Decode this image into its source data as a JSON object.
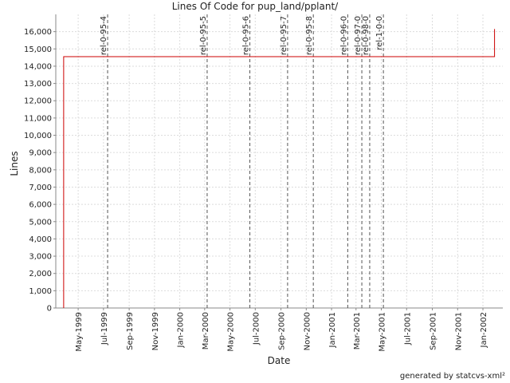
{
  "chart_data": {
    "type": "line",
    "title": "Lines Of Code for pup_land/pplant/",
    "x_label": "Date",
    "y_label": "Lines",
    "x": [
      "1999-03-27",
      "1999-03-27",
      "2002-01-29",
      "2002-01-29"
    ],
    "series": [
      {
        "color": "#cc0000",
        "values": [
          0,
          14550,
          14550,
          16150
        ]
      }
    ],
    "markers": [
      {
        "x": "1999-07-11",
        "label": "rel-0-95-4"
      },
      {
        "x": "2000-03-07",
        "label": "rel-0-95-5"
      },
      {
        "x": "2000-06-18",
        "label": "rel-0-95-6"
      },
      {
        "x": "2000-09-17",
        "label": "rel-0-95-7"
      },
      {
        "x": "2000-11-18",
        "label": "rel-0-95-8"
      },
      {
        "x": "2001-02-09",
        "label": "rel-0-96-0"
      },
      {
        "x": "2001-03-15",
        "label": "rel-0-97-0"
      },
      {
        "x": "2001-04-03",
        "label": "rel-0-98-0"
      },
      {
        "x": "2001-05-06",
        "label": "rel-1-0-0"
      }
    ],
    "marker_color": "#555555",
    "xlim": [
      "1999-03-08",
      "2002-02-18"
    ],
    "xticks": [
      {
        "value": "1999-05-01",
        "label": "May-1999"
      },
      {
        "value": "1999-07-01",
        "label": "Jul-1999"
      },
      {
        "value": "1999-09-01",
        "label": "Sep-1999"
      },
      {
        "value": "1999-11-01",
        "label": "Nov-1999"
      },
      {
        "value": "2000-01-01",
        "label": "Jan-2000"
      },
      {
        "value": "2000-03-01",
        "label": "Mar-2000"
      },
      {
        "value": "2000-05-01",
        "label": "May-2000"
      },
      {
        "value": "2000-07-01",
        "label": "Jul-2000"
      },
      {
        "value": "2000-09-01",
        "label": "Sep-2000"
      },
      {
        "value": "2000-11-01",
        "label": "Nov-2000"
      },
      {
        "value": "2001-01-01",
        "label": "Jan-2001"
      },
      {
        "value": "2001-03-01",
        "label": "Mar-2001"
      },
      {
        "value": "2001-05-01",
        "label": "May-2001"
      },
      {
        "value": "2001-07-01",
        "label": "Jul-2001"
      },
      {
        "value": "2001-09-01",
        "label": "Sep-2001"
      },
      {
        "value": "2001-11-01",
        "label": "Nov-2001"
      },
      {
        "value": "2002-01-01",
        "label": "Jan-2002"
      }
    ],
    "ylim": [
      0,
      17000
    ],
    "yticks": [
      0,
      {
        "value": 1000,
        "label": "1,000"
      },
      {
        "value": 2000,
        "label": "2,000"
      },
      {
        "value": 3000,
        "label": "3,000"
      },
      {
        "value": 4000,
        "label": "4,000"
      },
      {
        "value": 5000,
        "label": "5,000"
      },
      {
        "value": 6000,
        "label": "6,000"
      },
      {
        "value": 7000,
        "label": "7,000"
      },
      {
        "value": 8000,
        "label": "8,000"
      },
      {
        "value": 9000,
        "label": "9,000"
      },
      {
        "value": 10000,
        "label": "10,000"
      },
      {
        "value": 11000,
        "label": "11,000"
      },
      {
        "value": 12000,
        "label": "12,000"
      },
      {
        "value": 13000,
        "label": "13,000"
      },
      {
        "value": 14000,
        "label": "14,000"
      },
      {
        "value": 15000,
        "label": "15,000"
      },
      {
        "value": 16000,
        "label": "16,000"
      }
    ],
    "grid": true
  },
  "footer": "generated by statcvs-xml²"
}
